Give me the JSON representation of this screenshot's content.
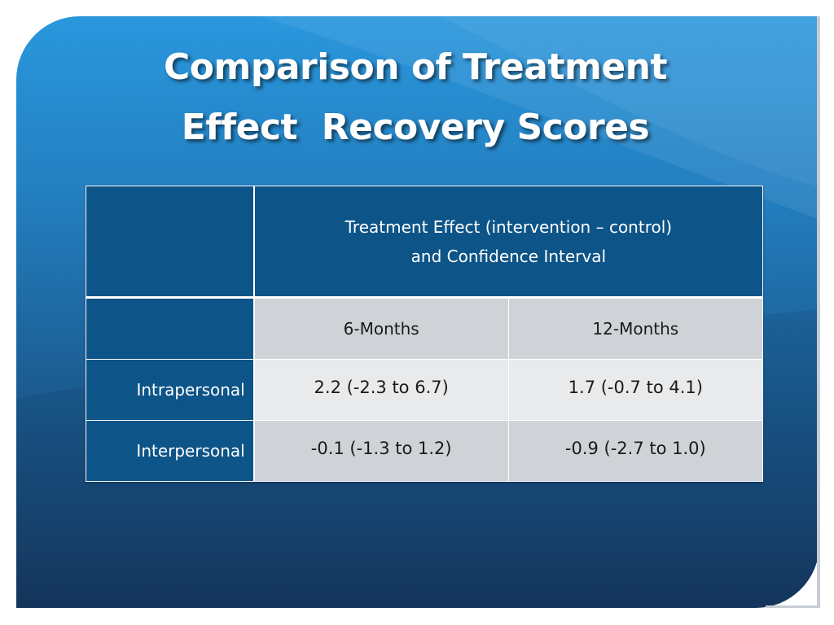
{
  "slide": {
    "title_lines": [
      "Comparison of Treatment",
      "Effect  Recovery Scores"
    ]
  },
  "table": {
    "header": {
      "corner": "",
      "effect_line_1": "Treatment Effect (intervention – control)",
      "effect_line_2": "and Confidence Interval"
    },
    "subheader": {
      "corner": "",
      "col_1": "6-Months",
      "col_2": "12-Months"
    },
    "rows": [
      {
        "label": "Intrapersonal",
        "six_months": "2.2 (-2.3 to 6.7)",
        "twelve_months": "1.7 (-0.7 to 4.1)"
      },
      {
        "label": "Interpersonal",
        "six_months": "-0.1 (-1.3 to 1.2)",
        "twelve_months": "-0.9 (-2.7 to 1.0)"
      }
    ]
  },
  "colors": {
    "background_top": "#2a97dd",
    "background_bottom": "#16375e",
    "table_header": "#0d5488",
    "cell_light": "#e9eaec",
    "cell_mid": "#cfd2d7",
    "title_text": "#ffffff"
  }
}
